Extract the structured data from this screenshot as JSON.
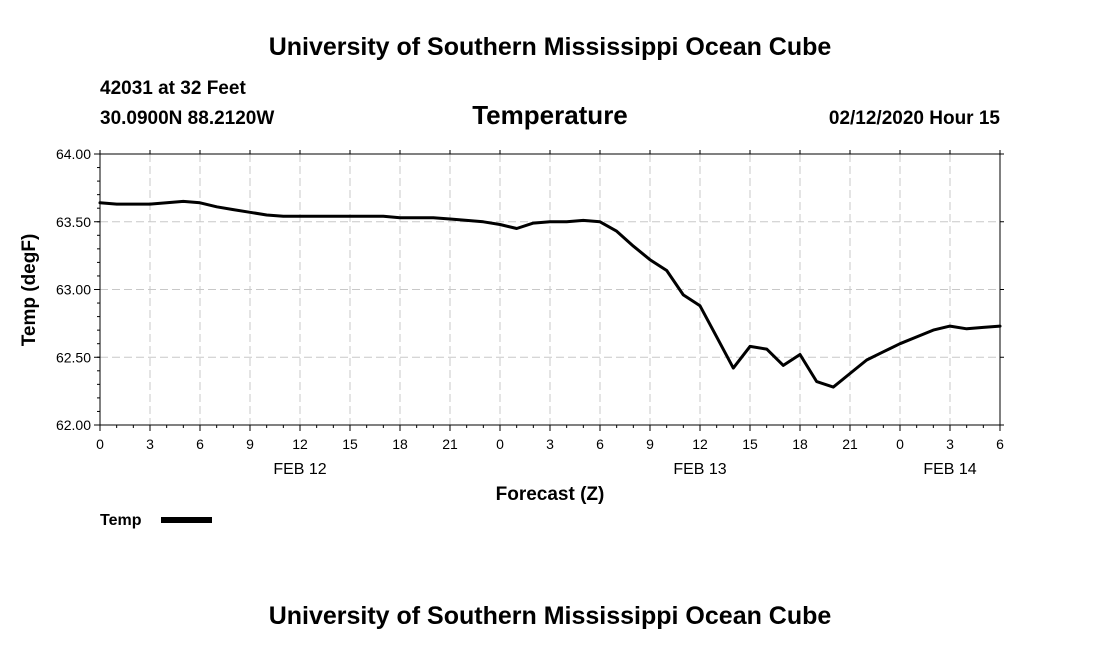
{
  "header": {
    "title_top": "University of Southern Mississippi Ocean Cube",
    "title_bottom": "University of Southern Mississippi Ocean Cube",
    "station_line1": "42031 at 32 Feet",
    "station_line2": "30.0900N 88.2120W",
    "issue_time": "02/12/2020 Hour 15"
  },
  "chart_data": {
    "type": "line",
    "title": "Temperature",
    "xlabel": "Forecast (Z)",
    "ylabel": "Temp (degF)",
    "ylim": [
      62.0,
      64.0
    ],
    "xlim": [
      0,
      54
    ],
    "y_ticks": [
      "62.00",
      "62.50",
      "63.00",
      "63.50",
      "64.00"
    ],
    "y_tick_values": [
      62.0,
      62.5,
      63.0,
      63.5,
      64.0
    ],
    "x_tick_hours": [
      0,
      3,
      6,
      9,
      12,
      15,
      18,
      21,
      24,
      27,
      30,
      33,
      36,
      39,
      42,
      45,
      48,
      51,
      54
    ],
    "x_tick_labels": [
      "0",
      "3",
      "6",
      "9",
      "12",
      "15",
      "18",
      "21",
      "0",
      "3",
      "6",
      "9",
      "12",
      "15",
      "18",
      "21",
      "0",
      "3",
      "6"
    ],
    "day_labels": [
      {
        "hour": 12,
        "label": "FEB 12"
      },
      {
        "hour": 36,
        "label": "FEB 13"
      },
      {
        "hour": 51,
        "label": "FEB 14"
      }
    ],
    "grid": true,
    "legend": {
      "label": "Temp",
      "placement": "bottom-left"
    },
    "series": [
      {
        "name": "Temp",
        "color": "#000000",
        "x": [
          0,
          1,
          2,
          3,
          4,
          5,
          6,
          7,
          8,
          9,
          10,
          11,
          12,
          13,
          14,
          15,
          16,
          17,
          18,
          19,
          20,
          21,
          22,
          23,
          24,
          25,
          26,
          27,
          28,
          29,
          30,
          31,
          32,
          33,
          34,
          35,
          36,
          37,
          38,
          39,
          40,
          41,
          42,
          43,
          44,
          45,
          46,
          47,
          48,
          49,
          50,
          51,
          52,
          53,
          54
        ],
        "values": [
          63.64,
          63.63,
          63.63,
          63.63,
          63.64,
          63.65,
          63.64,
          63.61,
          63.59,
          63.57,
          63.55,
          63.54,
          63.54,
          63.54,
          63.54,
          63.54,
          63.54,
          63.54,
          63.53,
          63.53,
          63.53,
          63.52,
          63.51,
          63.5,
          63.48,
          63.45,
          63.49,
          63.5,
          63.5,
          63.51,
          63.5,
          63.43,
          63.32,
          63.22,
          63.14,
          62.96,
          62.88,
          62.65,
          62.42,
          62.58,
          62.56,
          62.44,
          62.52,
          62.32,
          62.28,
          62.38,
          62.48,
          62.54,
          62.6,
          62.65,
          62.7,
          62.73,
          62.71,
          62.72,
          62.73
        ]
      }
    ]
  }
}
